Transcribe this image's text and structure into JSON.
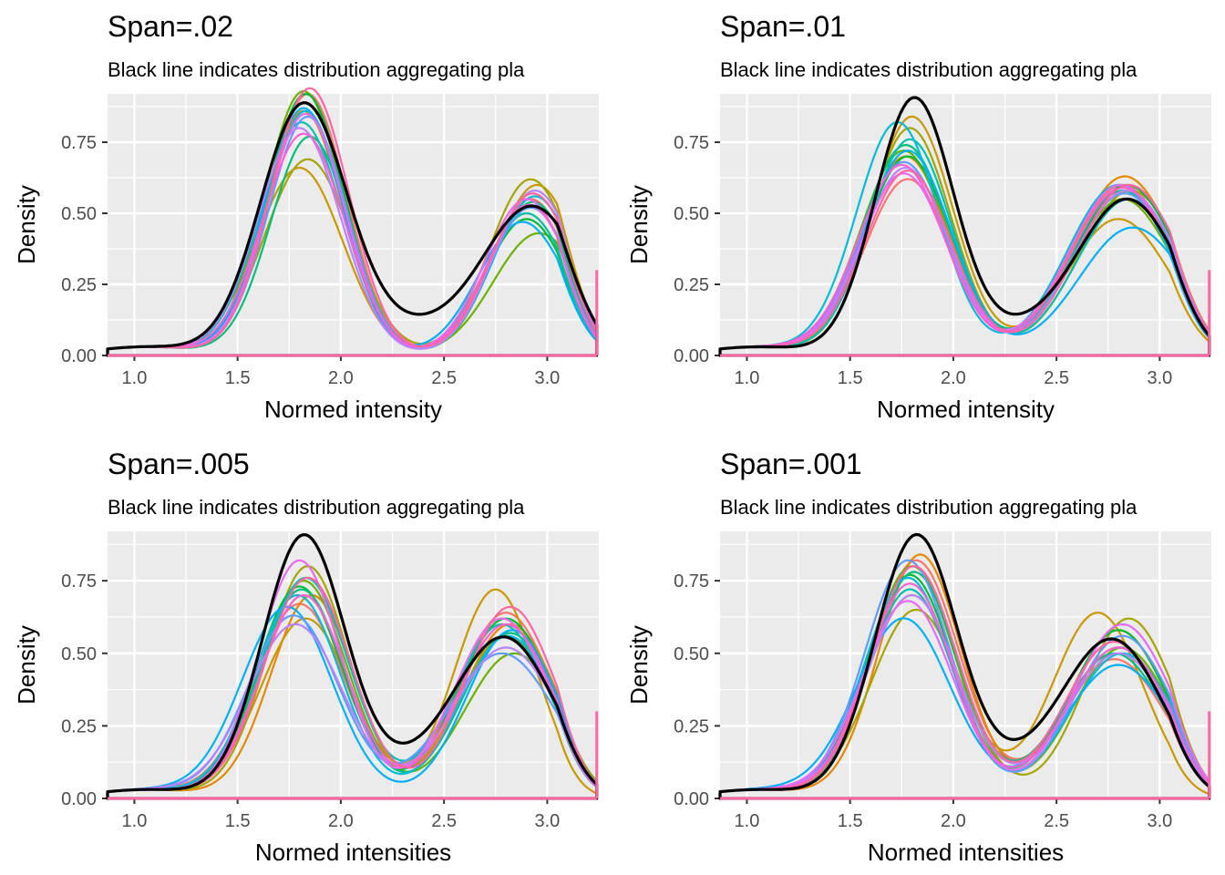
{
  "chart_data": [
    {
      "type": "line",
      "title": "Span=.02",
      "subtitle": "Black line indicates distribution aggregating pla",
      "xlabel": "Normed intensity",
      "ylabel": "Density",
      "xlim": [
        0.87,
        3.25
      ],
      "ylim": [
        0,
        0.92
      ],
      "xticks": [
        "1.0",
        "1.5",
        "2.0",
        "2.5",
        "3.0"
      ],
      "yticks": [
        "0.00",
        "0.25",
        "0.50",
        "0.75"
      ],
      "aggregate": {
        "name": "aggregate",
        "color": "#000000",
        "peak1": [
          1.82,
          0.88,
          0.21
        ],
        "peak2": [
          2.93,
          0.52,
          0.24
        ],
        "tail": 0.02,
        "valley_base": 0.33
      },
      "series": [
        {
          "color": "#F8766D",
          "peak1": [
            1.84,
            0.92,
            0.19
          ],
          "peak2": [
            2.92,
            0.55,
            0.2
          ]
        },
        {
          "color": "#E58700",
          "peak1": [
            1.82,
            0.86,
            0.19
          ],
          "peak2": [
            2.9,
            0.5,
            0.2
          ]
        },
        {
          "color": "#C99800",
          "peak1": [
            1.8,
            0.66,
            0.21
          ],
          "peak2": [
            2.95,
            0.6,
            0.2
          ]
        },
        {
          "color": "#A3A500",
          "peak1": [
            1.84,
            0.69,
            0.21
          ],
          "peak2": [
            2.92,
            0.62,
            0.2
          ]
        },
        {
          "color": "#6BB100",
          "peak1": [
            1.82,
            0.93,
            0.19
          ],
          "peak2": [
            2.96,
            0.43,
            0.22
          ]
        },
        {
          "color": "#00BA38",
          "peak1": [
            1.83,
            0.92,
            0.19
          ],
          "peak2": [
            2.9,
            0.48,
            0.2
          ]
        },
        {
          "color": "#00BF7D",
          "peak1": [
            1.85,
            0.77,
            0.19
          ],
          "peak2": [
            2.93,
            0.54,
            0.2
          ]
        },
        {
          "color": "#00C0AF",
          "peak1": [
            1.81,
            0.82,
            0.2
          ],
          "peak2": [
            2.9,
            0.5,
            0.2
          ]
        },
        {
          "color": "#00BCD8",
          "peak1": [
            1.83,
            0.86,
            0.19
          ],
          "peak2": [
            2.94,
            0.56,
            0.2
          ]
        },
        {
          "color": "#00B0F6",
          "peak1": [
            1.82,
            0.87,
            0.19
          ],
          "peak2": [
            2.88,
            0.47,
            0.21
          ]
        },
        {
          "color": "#619CFF",
          "peak1": [
            1.84,
            0.84,
            0.19
          ],
          "peak2": [
            2.92,
            0.52,
            0.2
          ]
        },
        {
          "color": "#B983FF",
          "peak1": [
            1.8,
            0.8,
            0.2
          ],
          "peak2": [
            2.94,
            0.58,
            0.2
          ]
        },
        {
          "color": "#E76BF3",
          "peak1": [
            1.83,
            0.85,
            0.19
          ],
          "peak2": [
            2.9,
            0.55,
            0.2
          ]
        },
        {
          "color": "#FD61D1",
          "peak1": [
            1.82,
            0.78,
            0.2
          ],
          "peak2": [
            2.91,
            0.53,
            0.2
          ]
        },
        {
          "color": "#FF67A4",
          "peak1": [
            1.85,
            0.94,
            0.19
          ],
          "peak2": [
            2.93,
            0.57,
            0.2
          ]
        }
      ]
    },
    {
      "type": "line",
      "title": "Span=.01",
      "subtitle": "Black line indicates distribution aggregating pla",
      "xlabel": "Normed intensity",
      "ylabel": "Density",
      "xlim": [
        0.87,
        3.25
      ],
      "ylim": [
        0,
        0.92
      ],
      "xticks": [
        "1.0",
        "1.5",
        "2.0",
        "2.5",
        "3.0"
      ],
      "yticks": [
        "0.00",
        "0.25",
        "0.50",
        "0.75"
      ],
      "aggregate": {
        "name": "aggregate",
        "color": "#000000",
        "peak1": [
          1.81,
          0.9,
          0.19
        ],
        "peak2": [
          2.85,
          0.54,
          0.24
        ],
        "tail": 0.01,
        "valley_base": 0.3
      },
      "series": [
        {
          "color": "#F8766D",
          "peak1": [
            1.78,
            0.62,
            0.21
          ],
          "peak2": [
            2.82,
            0.6,
            0.25
          ]
        },
        {
          "color": "#E58700",
          "peak1": [
            1.77,
            0.7,
            0.21
          ],
          "peak2": [
            2.83,
            0.63,
            0.25
          ]
        },
        {
          "color": "#C99800",
          "peak1": [
            1.8,
            0.84,
            0.2
          ],
          "peak2": [
            2.8,
            0.48,
            0.25
          ]
        },
        {
          "color": "#A3A500",
          "peak1": [
            1.79,
            0.8,
            0.2
          ],
          "peak2": [
            2.86,
            0.58,
            0.25
          ]
        },
        {
          "color": "#6BB100",
          "peak1": [
            1.76,
            0.72,
            0.21
          ],
          "peak2": [
            2.82,
            0.55,
            0.25
          ]
        },
        {
          "color": "#00BA38",
          "peak1": [
            1.78,
            0.7,
            0.21
          ],
          "peak2": [
            2.84,
            0.6,
            0.25
          ]
        },
        {
          "color": "#00BF7D",
          "peak1": [
            1.77,
            0.74,
            0.21
          ],
          "peak2": [
            2.82,
            0.58,
            0.25
          ]
        },
        {
          "color": "#00C0AF",
          "peak1": [
            1.79,
            0.76,
            0.2
          ],
          "peak2": [
            2.85,
            0.55,
            0.25
          ]
        },
        {
          "color": "#00BCD8",
          "peak1": [
            1.73,
            0.82,
            0.2
          ],
          "peak2": [
            2.8,
            0.6,
            0.25
          ]
        },
        {
          "color": "#00B0F6",
          "peak1": [
            1.78,
            0.72,
            0.21
          ],
          "peak2": [
            2.87,
            0.45,
            0.26
          ]
        },
        {
          "color": "#619CFF",
          "peak1": [
            1.76,
            0.68,
            0.21
          ],
          "peak2": [
            2.83,
            0.57,
            0.25
          ]
        },
        {
          "color": "#B983FF",
          "peak1": [
            1.77,
            0.66,
            0.21
          ],
          "peak2": [
            2.84,
            0.58,
            0.25
          ]
        },
        {
          "color": "#E76BF3",
          "peak1": [
            1.76,
            0.64,
            0.21
          ],
          "peak2": [
            2.81,
            0.6,
            0.25
          ]
        },
        {
          "color": "#FD61D1",
          "peak1": [
            1.75,
            0.67,
            0.21
          ],
          "peak2": [
            2.82,
            0.59,
            0.25
          ]
        },
        {
          "color": "#FF67A4",
          "peak1": [
            1.78,
            0.65,
            0.21
          ],
          "peak2": [
            2.85,
            0.6,
            0.25
          ]
        }
      ]
    },
    {
      "type": "line",
      "title": "Span=.005",
      "subtitle": "Black line indicates distribution aggregating pla",
      "xlabel": "Normed intensities",
      "ylabel": "Density",
      "xlim": [
        0.87,
        3.25
      ],
      "ylim": [
        0,
        0.92
      ],
      "xticks": [
        "1.0",
        "1.5",
        "2.0",
        "2.5",
        "3.0"
      ],
      "yticks": [
        "0.00",
        "0.25",
        "0.50",
        "0.75"
      ],
      "aggregate": {
        "name": "aggregate",
        "color": "#000000",
        "peak1": [
          1.82,
          0.9,
          0.2
        ],
        "peak2": [
          2.8,
          0.54,
          0.24
        ],
        "tail": 0.02,
        "valley_base": 0.32
      },
      "series": [
        {
          "color": "#F8766D",
          "peak1": [
            1.8,
            0.67,
            0.22
          ],
          "peak2": [
            2.8,
            0.64,
            0.23
          ]
        },
        {
          "color": "#E58700",
          "peak1": [
            1.86,
            0.7,
            0.2
          ],
          "peak2": [
            2.82,
            0.6,
            0.23
          ]
        },
        {
          "color": "#C99800",
          "peak1": [
            1.83,
            0.62,
            0.22
          ],
          "peak2": [
            2.75,
            0.72,
            0.2
          ]
        },
        {
          "color": "#A3A500",
          "peak1": [
            1.84,
            0.8,
            0.2
          ],
          "peak2": [
            2.8,
            0.56,
            0.23
          ]
        },
        {
          "color": "#6BB100",
          "peak1": [
            1.82,
            0.75,
            0.21
          ],
          "peak2": [
            2.84,
            0.5,
            0.24
          ]
        },
        {
          "color": "#00BA38",
          "peak1": [
            1.8,
            0.73,
            0.21
          ],
          "peak2": [
            2.8,
            0.62,
            0.23
          ]
        },
        {
          "color": "#00BF7D",
          "peak1": [
            1.81,
            0.72,
            0.21
          ],
          "peak2": [
            2.82,
            0.57,
            0.23
          ]
        },
        {
          "color": "#00C0AF",
          "peak1": [
            1.83,
            0.76,
            0.21
          ],
          "peak2": [
            2.78,
            0.6,
            0.23
          ]
        },
        {
          "color": "#00BCD8",
          "peak1": [
            1.79,
            0.7,
            0.21
          ],
          "peak2": [
            2.81,
            0.56,
            0.23
          ]
        },
        {
          "color": "#00B0F6",
          "peak1": [
            1.74,
            0.66,
            0.22
          ],
          "peak2": [
            2.83,
            0.58,
            0.22
          ]
        },
        {
          "color": "#619CFF",
          "peak1": [
            1.77,
            0.63,
            0.22
          ],
          "peak2": [
            2.78,
            0.5,
            0.26
          ]
        },
        {
          "color": "#B983FF",
          "peak1": [
            1.78,
            0.6,
            0.23
          ],
          "peak2": [
            2.8,
            0.52,
            0.25
          ]
        },
        {
          "color": "#E76BF3",
          "peak1": [
            1.8,
            0.82,
            0.2
          ],
          "peak2": [
            2.78,
            0.62,
            0.23
          ]
        },
        {
          "color": "#FD61D1",
          "peak1": [
            1.82,
            0.7,
            0.21
          ],
          "peak2": [
            2.8,
            0.6,
            0.23
          ]
        },
        {
          "color": "#FF67A4",
          "peak1": [
            1.84,
            0.76,
            0.21
          ],
          "peak2": [
            2.82,
            0.66,
            0.22
          ]
        }
      ]
    },
    {
      "type": "line",
      "title": "Span=.001",
      "subtitle": "Black line indicates distribution aggregating pla",
      "xlabel": "Normed intensities",
      "ylabel": "Density",
      "xlim": [
        0.87,
        3.25
      ],
      "ylim": [
        0,
        0.92
      ],
      "xticks": [
        "1.0",
        "1.5",
        "2.0",
        "2.5",
        "3.0"
      ],
      "yticks": [
        "0.00",
        "0.25",
        "0.50",
        "0.75"
      ],
      "aggregate": {
        "name": "aggregate",
        "color": "#000000",
        "peak1": [
          1.82,
          0.9,
          0.2
        ],
        "peak2": [
          2.78,
          0.53,
          0.24
        ],
        "tail": 0.02,
        "valley_base": 0.33
      },
      "series": [
        {
          "color": "#F8766D",
          "peak1": [
            1.82,
            0.82,
            0.21
          ],
          "peak2": [
            2.78,
            0.48,
            0.25
          ]
        },
        {
          "color": "#E58700",
          "peak1": [
            1.84,
            0.84,
            0.2
          ],
          "peak2": [
            2.8,
            0.58,
            0.24
          ]
        },
        {
          "color": "#C99800",
          "peak1": [
            1.8,
            0.7,
            0.22
          ],
          "peak2": [
            2.7,
            0.64,
            0.22
          ]
        },
        {
          "color": "#A3A500",
          "peak1": [
            1.82,
            0.65,
            0.22
          ],
          "peak2": [
            2.85,
            0.62,
            0.22
          ]
        },
        {
          "color": "#6BB100",
          "peak1": [
            1.8,
            0.8,
            0.21
          ],
          "peak2": [
            2.82,
            0.52,
            0.24
          ]
        },
        {
          "color": "#00BA38",
          "peak1": [
            1.79,
            0.77,
            0.21
          ],
          "peak2": [
            2.8,
            0.58,
            0.24
          ]
        },
        {
          "color": "#00BF7D",
          "peak1": [
            1.81,
            0.78,
            0.21
          ],
          "peak2": [
            2.78,
            0.5,
            0.25
          ]
        },
        {
          "color": "#00C0AF",
          "peak1": [
            1.79,
            0.72,
            0.21
          ],
          "peak2": [
            2.8,
            0.52,
            0.25
          ]
        },
        {
          "color": "#00BCD8",
          "peak1": [
            1.78,
            0.76,
            0.21
          ],
          "peak2": [
            2.82,
            0.5,
            0.25
          ]
        },
        {
          "color": "#00B0F6",
          "peak1": [
            1.76,
            0.62,
            0.23
          ],
          "peak2": [
            2.8,
            0.46,
            0.26
          ]
        },
        {
          "color": "#619CFF",
          "peak1": [
            1.78,
            0.82,
            0.21
          ],
          "peak2": [
            2.82,
            0.56,
            0.24
          ]
        },
        {
          "color": "#B983FF",
          "peak1": [
            1.8,
            0.7,
            0.22
          ],
          "peak2": [
            2.8,
            0.5,
            0.25
          ]
        },
        {
          "color": "#E76BF3",
          "peak1": [
            1.78,
            0.68,
            0.22
          ],
          "peak2": [
            2.82,
            0.6,
            0.24
          ]
        },
        {
          "color": "#FD61D1",
          "peak1": [
            1.79,
            0.74,
            0.21
          ],
          "peak2": [
            2.8,
            0.52,
            0.25
          ]
        },
        {
          "color": "#FF67A4",
          "peak1": [
            1.81,
            0.8,
            0.21
          ],
          "peak2": [
            2.78,
            0.54,
            0.24
          ]
        }
      ]
    }
  ]
}
